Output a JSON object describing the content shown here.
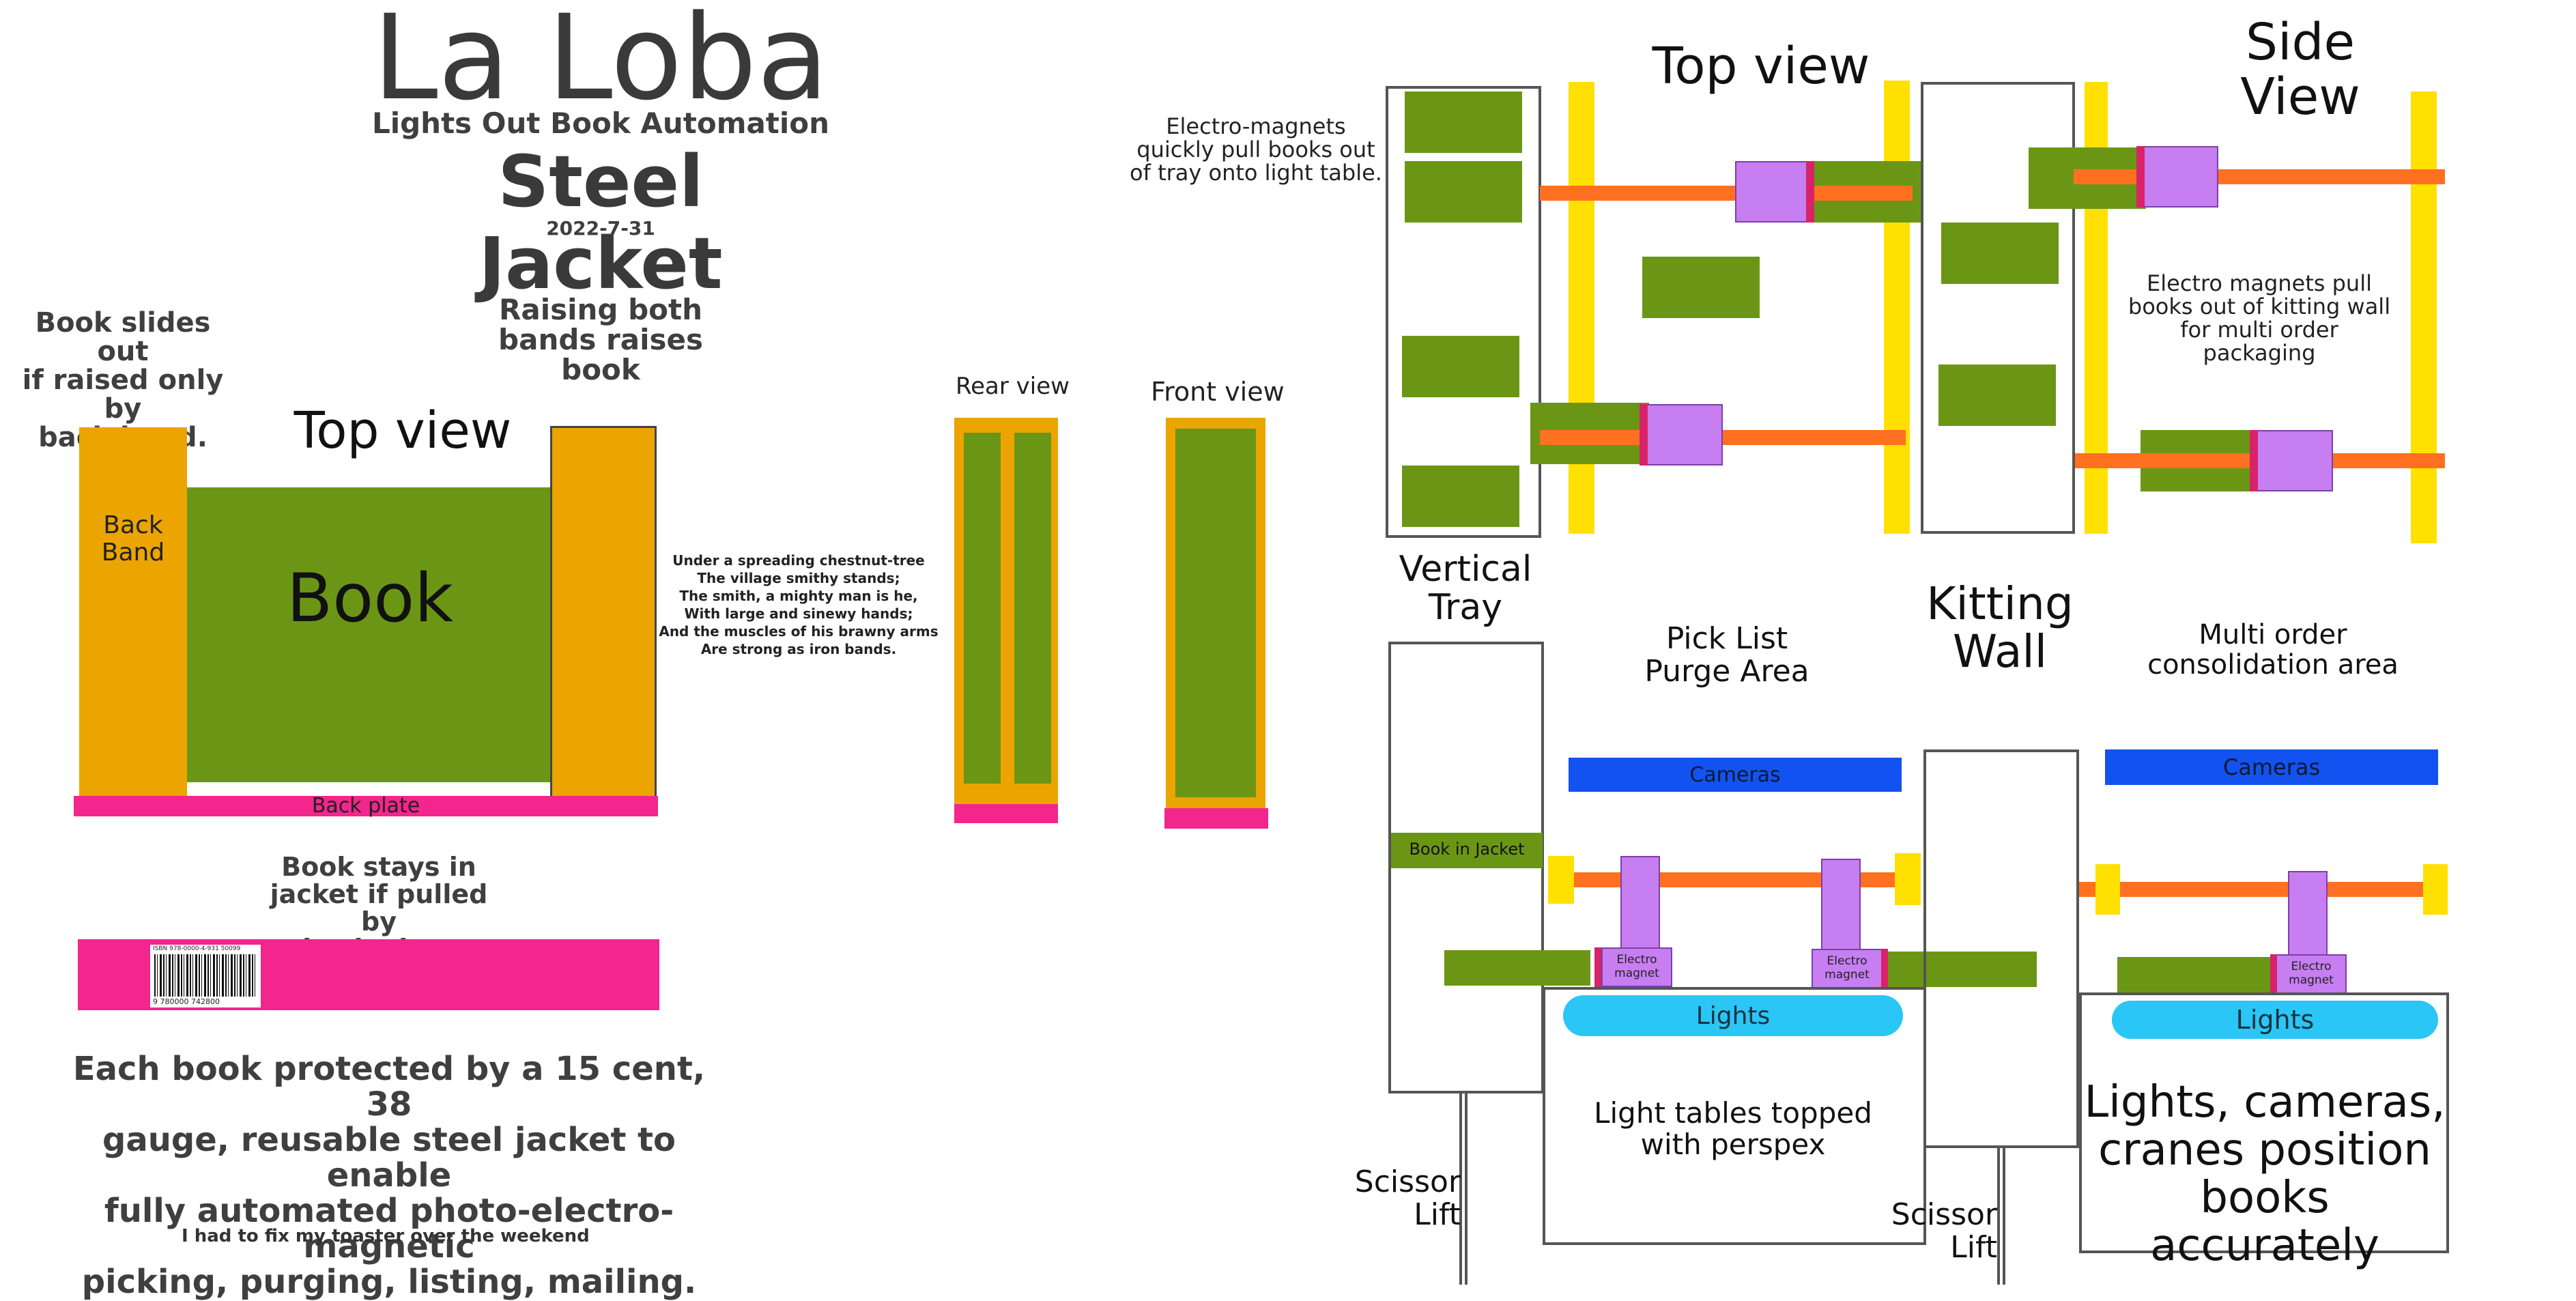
{
  "header": {
    "title": "La Loba",
    "subtitle": "Lights Out Book Automation",
    "jacket_title": "Steel Jacket",
    "date": "2022-7-31"
  },
  "left_panel": {
    "note_back_band": "Book slides out\nif raised only by\nback band.",
    "note_both_bands": "Raising both\nbands raises\nbook",
    "top_view_label": "Top view",
    "back_band_label": "Back\nBand",
    "book_label": "Book",
    "back_plate_label": "Back plate",
    "note_stays": "Book stays in\njacket if pulled by\nback plate",
    "barcode_top_text": "ISBN 978-0000-4-931   50099",
    "barcode_bottom_text": "9 780000 742800",
    "description": "Each book protected by a 15 cent, 38\ngauge, reusable steel jacket to enable\nfully automated photo-electro-magnetic\npicking, purging, listing, mailing.",
    "footnote": "I had to fix my toaster over the weekend"
  },
  "poem": "Under a spreading chestnut-tree\nThe village smithy stands;\nThe smith, a mighty man is he,\nWith large and sinewy hands;\nAnd the muscles of his brawny arms\nAre strong as iron bands.",
  "views": {
    "rear_label": "Rear view",
    "front_label": "Front view"
  },
  "top_view_diagram": {
    "heading": "Top view",
    "side_heading": "Side\nView",
    "note_magnets": "Electro-magnets\nquickly pull books out\nof tray onto light table.",
    "note_kitting": "Electro magnets pull\nbooks out of kitting wall\nfor multi order packaging"
  },
  "floor_diagram": {
    "vertical_tray": "Vertical\nTray",
    "pick_list": "Pick List\nPurge Area",
    "kitting_wall": "Kitting\nWall",
    "multi_order": "Multi order\nconsolidation area",
    "cameras_left": "Cameras",
    "cameras_right": "Cameras",
    "book_in_jacket": "Book in Jacket",
    "magnet_label": "Electro\nmagnet",
    "lights_left": "Lights",
    "lights_right": "Lights",
    "light_tables": "Light tables topped\nwith perspex",
    "lcc": "Lights, cameras,\ncranes position\nbooks accurately",
    "scissor_left": "Scissor\nLift",
    "scissor_right": "Scissor\nLift"
  },
  "colors": {
    "jacket_orange": "#eba400",
    "book_green": "#6b9615",
    "plate_pink": "#f2268c",
    "rail_yellow": "#ffe000",
    "rod_orange": "#ff7020",
    "magnet_purple": "#c67ef0",
    "camera_blue": "#1252f0",
    "light_cyan": "#2ac6f5"
  }
}
